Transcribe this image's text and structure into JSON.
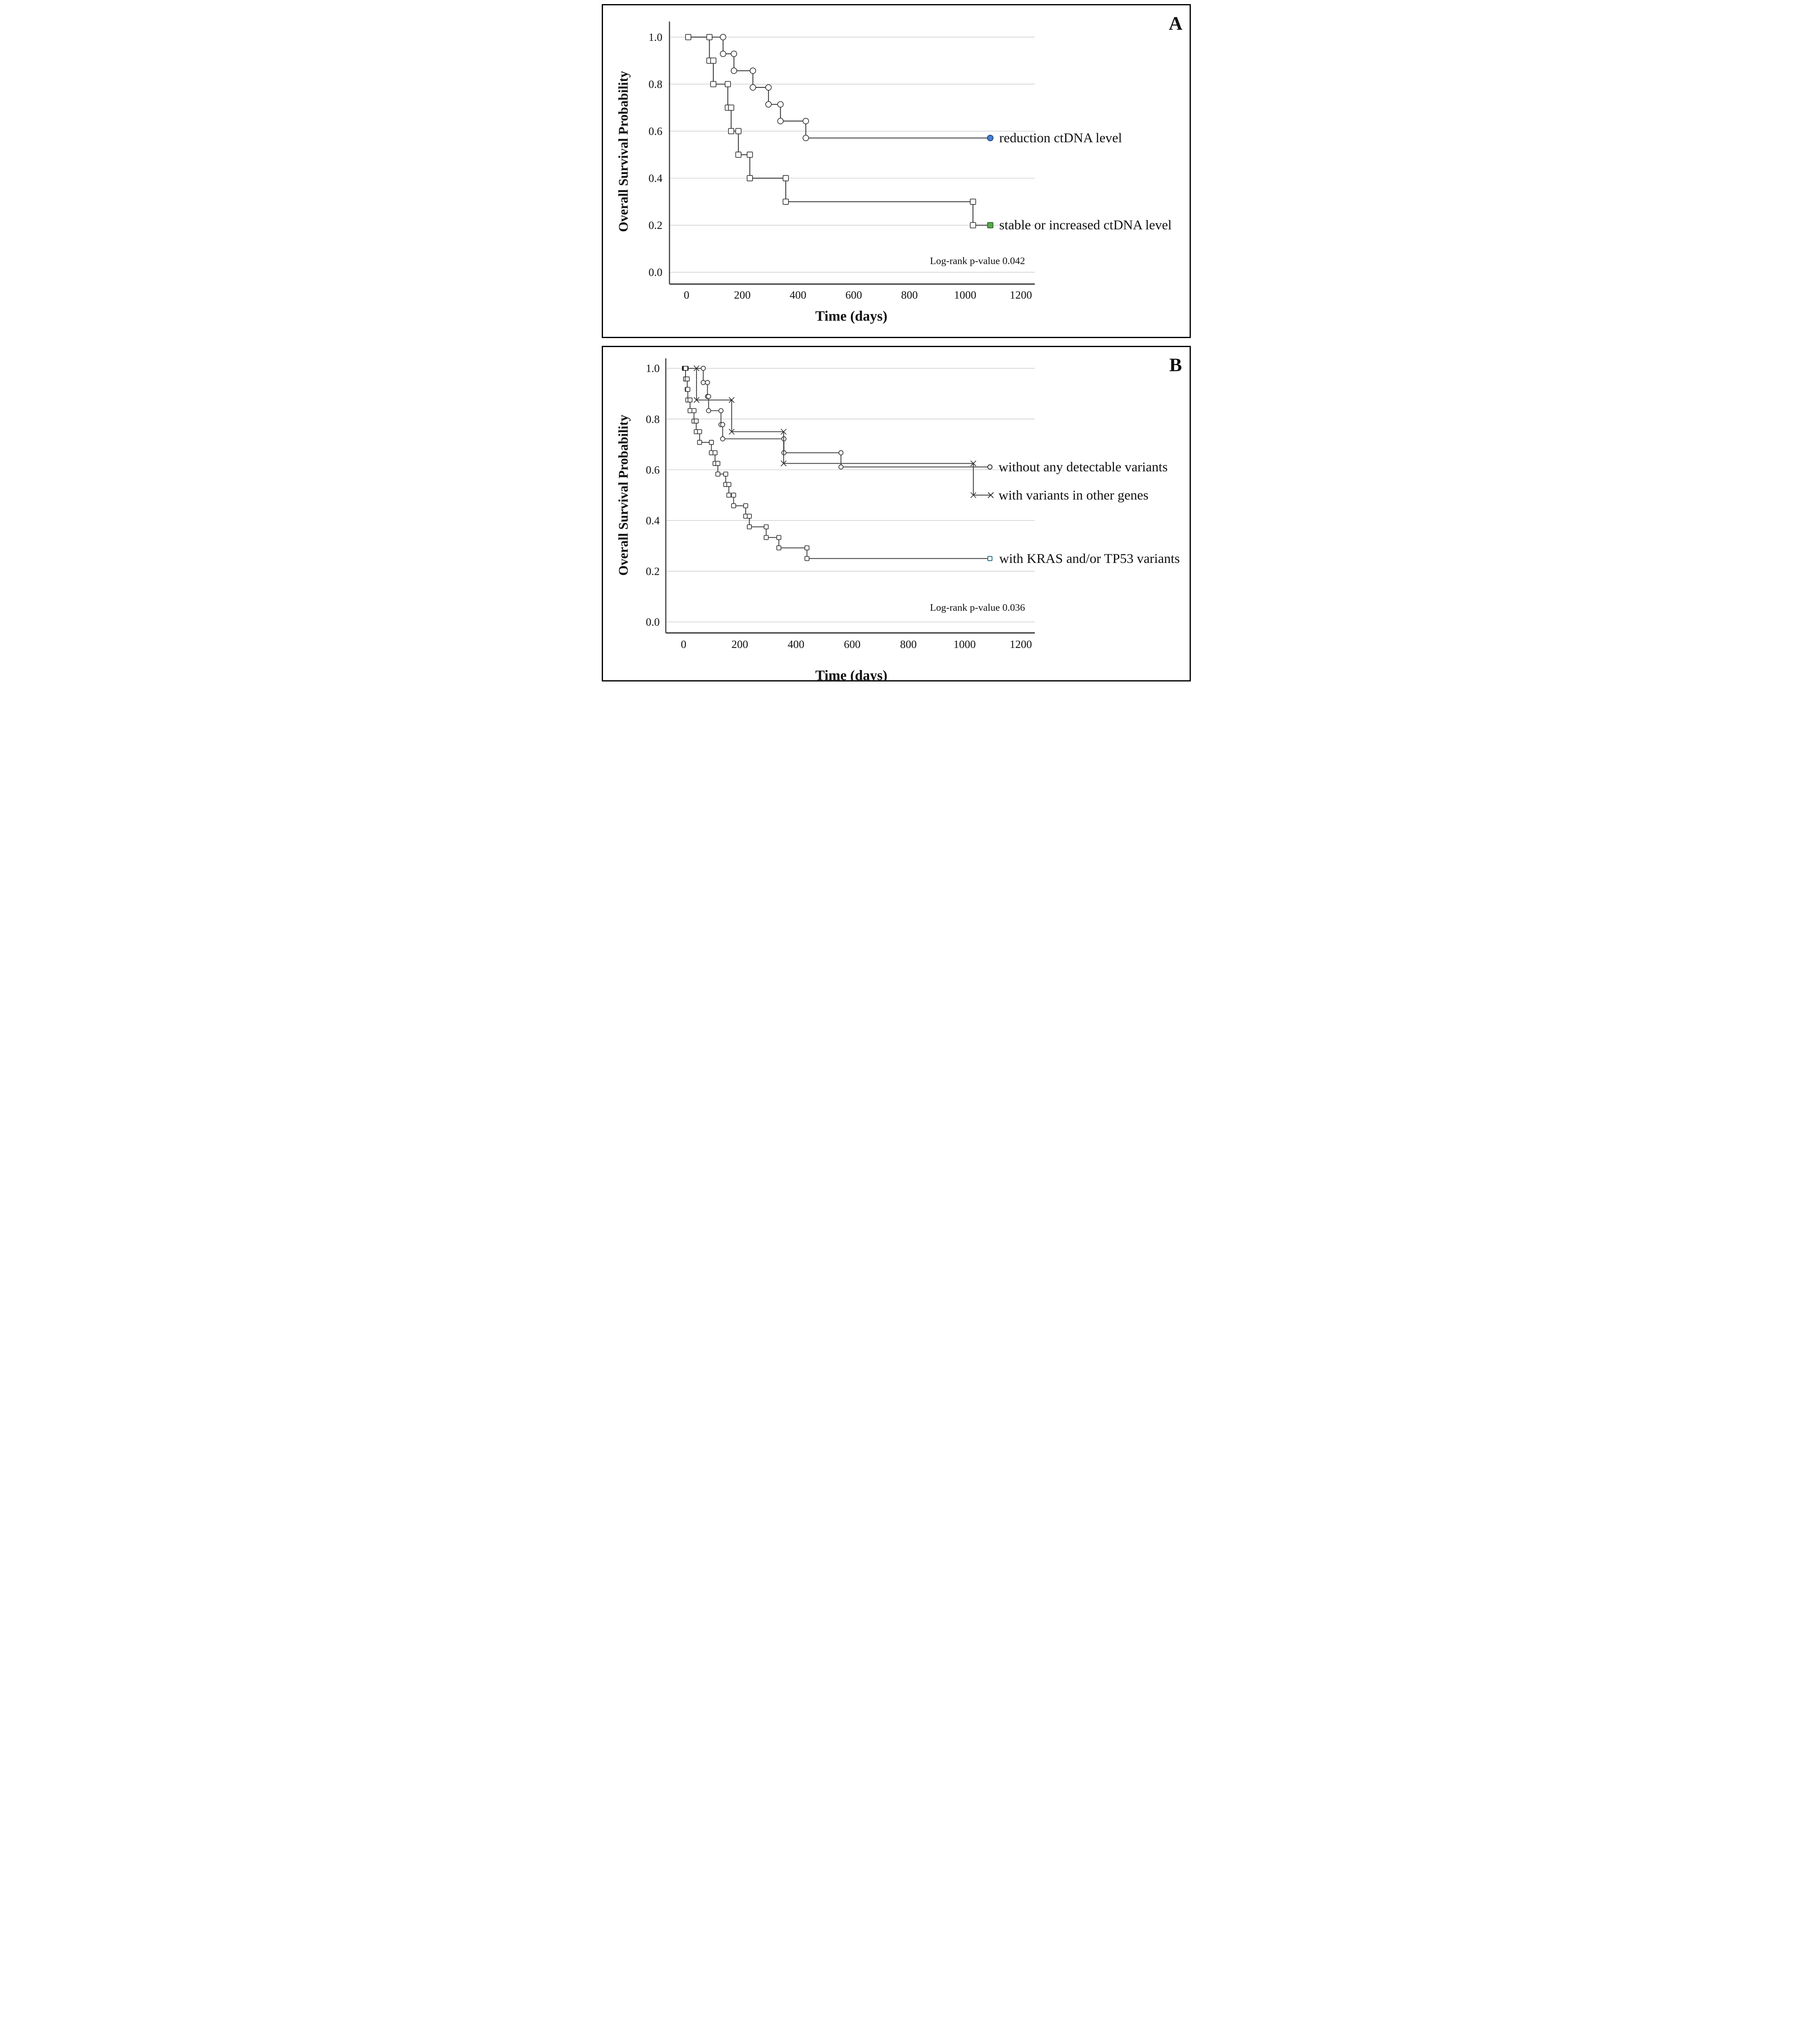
{
  "figure": {
    "background": "#ffffff",
    "frame_color": "#000000",
    "grid_color": "#c8c8c8",
    "axis_color": "#4d4d4d",
    "curve_color": "#3a3a3a"
  },
  "chart_data": [
    {
      "panel_label": "A",
      "type": "line",
      "subtype": "kaplan-meier-step",
      "xlabel": "Time (days)",
      "ylabel": "Overall Survival Probability",
      "annotation": "Log-rank p-value 0.042",
      "x_ticks": [
        "0",
        "200",
        "400",
        "600",
        "800",
        "1000",
        "1200"
      ],
      "y_ticks": [
        "1.0",
        "0.8",
        "0.6",
        "0.4",
        "0.2",
        "0.0"
      ],
      "xlim": [
        0,
        1290
      ],
      "ylim": [
        0.0,
        1.0
      ],
      "grid": "horizontal",
      "legend_position": "right-inline",
      "series": [
        {
          "name": "reduction ctDNA level",
          "marker": "circle",
          "color": "#3a3a3a",
          "steps": [
            [
              0,
              1.0
            ],
            [
              131,
              0.929
            ],
            [
              170,
              0.857
            ],
            [
              238,
              0.786
            ],
            [
              294,
              0.714
            ],
            [
              337,
              0.643
            ],
            [
              428,
              0.571
            ],
            [
              1090,
              0.571
            ]
          ],
          "censored_end": {
            "t": 1090,
            "v": 0.571,
            "fill": "#4a7fd4",
            "stroke": "#24477e"
          },
          "start_markers": []
        },
        {
          "name": "stable or increased ctDNA level",
          "marker": "square",
          "color": "#3a3a3a",
          "steps": [
            [
              0,
              1.0
            ],
            [
              82,
              0.9
            ],
            [
              96,
              0.8
            ],
            [
              148,
              0.7
            ],
            [
              160,
              0.6
            ],
            [
              186,
              0.5
            ],
            [
              227,
              0.4
            ],
            [
              356,
              0.3
            ],
            [
              1028,
              0.2
            ],
            [
              1090,
              0.2
            ]
          ],
          "censored_end": {
            "t": 1090,
            "v": 0.2,
            "fill": "#57a94c",
            "stroke": "#2f6b2f"
          },
          "start_markers": [
            {
              "t": 6,
              "v": 1.0,
              "filled": false
            }
          ]
        }
      ]
    },
    {
      "panel_label": "B",
      "type": "line",
      "subtype": "kaplan-meier-step",
      "xlabel": "Time (days)",
      "ylabel": "Overall Survival Probability",
      "annotation": "Log-rank p-value 0.036",
      "x_ticks": [
        "0",
        "200",
        "400",
        "600",
        "800",
        "1000",
        "1200"
      ],
      "y_ticks": [
        "1.0",
        "0.8",
        "0.6",
        "0.4",
        "0.2",
        "0.0"
      ],
      "xlim": [
        0,
        1290
      ],
      "ylim": [
        0.0,
        1.0
      ],
      "grid": "horizontal",
      "legend_position": "right-inline",
      "series": [
        {
          "name": "without any detectable variants",
          "marker": "circle",
          "color": "#3a3a3a",
          "steps": [
            [
              0,
              1.0
            ],
            [
              70,
              0.944
            ],
            [
              85,
              0.889
            ],
            [
              89,
              0.833
            ],
            [
              133,
              0.778
            ],
            [
              139,
              0.722
            ],
            [
              357,
              0.667
            ],
            [
              560,
              0.611
            ],
            [
              1090,
              0.611
            ]
          ],
          "censored_end": {
            "t": 1090,
            "v": 0.611,
            "fill": "#ffffff",
            "stroke": "#2f2f2f"
          },
          "start_markers": []
        },
        {
          "name": "with variants in other genes",
          "marker": "x",
          "color": "#3a3a3a",
          "steps": [
            [
              0,
              1.0
            ],
            [
              46,
              0.875
            ],
            [
              171,
              0.75
            ],
            [
              356,
              0.625
            ],
            [
              1031,
              0.5
            ],
            [
              1093,
              0.5
            ]
          ],
          "censored_end": {
            "t": 1093,
            "v": 0.5,
            "fill": "none",
            "stroke": "#2f2f2f"
          },
          "start_markers": []
        },
        {
          "name": "with KRAS and/or TP53 variants",
          "marker": "square",
          "color": "#3a3a3a",
          "steps": [
            [
              0,
              1.0
            ],
            [
              7,
              0.958
            ],
            [
              13,
              0.917
            ],
            [
              15,
              0.875
            ],
            [
              23,
              0.833
            ],
            [
              37,
              0.792
            ],
            [
              45,
              0.75
            ],
            [
              57,
              0.708
            ],
            [
              99,
              0.667
            ],
            [
              112,
              0.625
            ],
            [
              122,
              0.583
            ],
            [
              150,
              0.542
            ],
            [
              161,
              0.5
            ],
            [
              178,
              0.458
            ],
            [
              221,
              0.417
            ],
            [
              234,
              0.375
            ],
            [
              294,
              0.333
            ],
            [
              339,
              0.292
            ],
            [
              439,
              0.25
            ],
            [
              1090,
              0.25
            ]
          ],
          "censored_end": {
            "t": 1090,
            "v": 0.25,
            "fill": "#ffffff",
            "stroke": "#176b74"
          },
          "start_markers": [
            {
              "t": 3,
              "v": 1.0,
              "filled": true
            },
            {
              "t": 9,
              "v": 1.0,
              "filled": true
            }
          ]
        }
      ]
    }
  ]
}
